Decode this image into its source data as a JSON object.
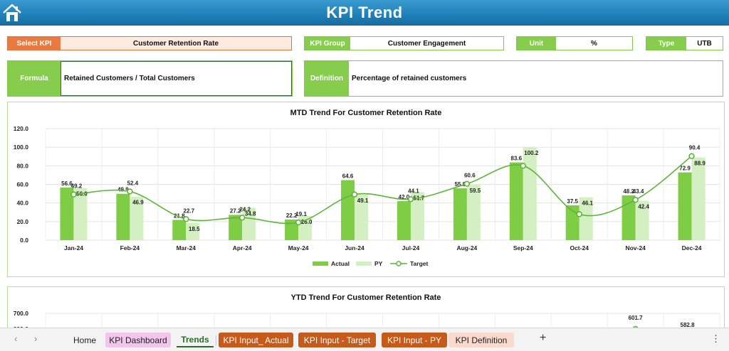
{
  "header": {
    "title": "KPI Trend",
    "icon": "home-icon"
  },
  "fields": {
    "select_kpi_label": "Select KPI",
    "select_kpi_value": "Customer Retention Rate",
    "kpi_group_label": "KPI Group",
    "kpi_group_value": "Customer Engagement",
    "unit_label": "Unit",
    "unit_value": "%",
    "type_label": "Type",
    "type_value": "UTB",
    "formula_label": "Formula",
    "formula_value": "Retained Customers / Total Customers",
    "definition_label": "Definition",
    "definition_value": "Percentage of retained customers"
  },
  "colors": {
    "actual": "#7fcc45",
    "py": "#d4f0c2",
    "target": "#5fb33a",
    "orange": "#ea7b40",
    "green": "#86cc4d",
    "banner": "#1f7fb8"
  },
  "chart_data": [
    {
      "type": "bar",
      "title": "MTD Trend For Customer Retention Rate",
      "categories": [
        "Jan-24",
        "Feb-24",
        "Mar-24",
        "Apr-24",
        "May-24",
        "Jun-24",
        "Jul-24",
        "Aug-24",
        "Sep-24",
        "Oct-24",
        "Nov-24",
        "Dec-24"
      ],
      "series": [
        {
          "name": "Actual",
          "type": "bar",
          "values": [
            56.6,
            49.9,
            21.8,
            27.2,
            22.2,
            64.6,
            42.0,
            55.9,
            83.6,
            37.5,
            48.2,
            72.9
          ]
        },
        {
          "name": "PY",
          "type": "bar",
          "values": [
            56.0,
            46.9,
            18.5,
            34.8,
            26.0,
            49.1,
            51.7,
            59.5,
            100.2,
            46.1,
            42.4,
            88.9
          ]
        },
        {
          "name": "Target",
          "type": "line",
          "values": [
            49.2,
            52.4,
            22.7,
            24.2,
            19.1,
            49.1,
            44.1,
            60.6,
            80.0,
            28.0,
            43.4,
            90.4
          ]
        }
      ],
      "label_text": {
        "actual": [
          "56.6",
          "49.9",
          "21.8",
          "27.2",
          "22.2",
          "64.6",
          "42.0",
          "55.9",
          "83.6",
          "37.5",
          "48.2",
          "72.9"
        ],
        "py": [
          "56.0",
          "46.9",
          "18.5",
          "34.8",
          "26.0",
          "49.1",
          "51.7",
          "59.5",
          "100.2",
          "46.1",
          "42.4",
          "88.9"
        ],
        "target": [
          "49.2",
          "52.4",
          "22.7",
          "24.2",
          "19.1",
          "",
          "44.1",
          "60.6",
          "",
          "",
          "43.4",
          "90.4"
        ]
      },
      "yticks": [
        "120.0",
        "100.0",
        "80.0",
        "60.0",
        "40.0",
        "20.0",
        "0.0"
      ],
      "ylim": [
        0,
        120
      ],
      "legend": [
        "Actual",
        "PY",
        "Target"
      ],
      "legend_position": "bottom",
      "grid": true
    },
    {
      "type": "bar",
      "title": "YTD Trend For Customer Retention Rate",
      "yticks": [
        "700.0",
        "600.0"
      ],
      "visible_labels": {
        "nov_target": "601.7",
        "dec_value": "582.8"
      },
      "ylim": [
        0,
        700
      ]
    }
  ],
  "tabs": {
    "nav_prev": "‹",
    "nav_next": "›",
    "home": "Home",
    "kpi_dashboard": "KPI Dashboard",
    "trends": "Trends",
    "kpi_input_actual": "KPI Input_ Actual",
    "kpi_input_target": "KPI Input - Target",
    "kpi_input_py": "KPI Input - PY",
    "kpi_definition": "KPI Definition",
    "add": "+",
    "more": "⋮"
  }
}
